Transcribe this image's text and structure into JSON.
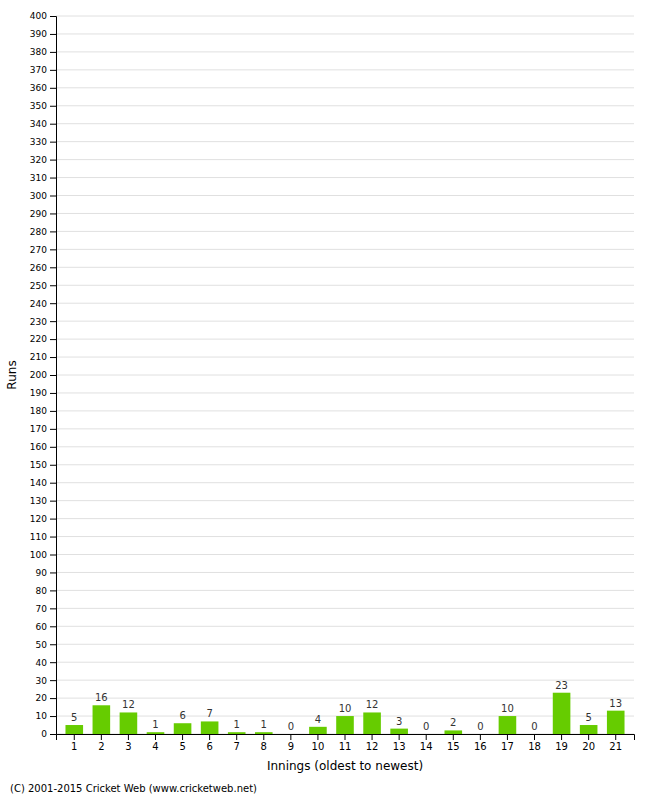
{
  "chart_data": {
    "type": "bar",
    "xlabel": "Innings (oldest to newest)",
    "ylabel": "Runs",
    "categories": [
      1,
      2,
      3,
      4,
      5,
      6,
      7,
      8,
      9,
      10,
      11,
      12,
      13,
      14,
      15,
      16,
      17,
      18,
      19,
      20,
      21
    ],
    "values": [
      5,
      16,
      12,
      1,
      6,
      7,
      1,
      1,
      0,
      4,
      10,
      12,
      3,
      0,
      2,
      0,
      10,
      0,
      23,
      5,
      13
    ],
    "color": "#66cc00",
    "ylim": [
      0,
      400
    ],
    "yticks": [
      0,
      10,
      20,
      30,
      40,
      50,
      60,
      70,
      80,
      90,
      100,
      110,
      120,
      130,
      140,
      150,
      160,
      170,
      180,
      190,
      200,
      210,
      220,
      230,
      240,
      250,
      260,
      270,
      280,
      290,
      300,
      310,
      320,
      330,
      340,
      350,
      360,
      370,
      380,
      390,
      400
    ],
    "grid": true,
    "data_labels": true,
    "annotations": [
      "(C) 2001-2015 Cricket Web (www.cricketweb.net)"
    ]
  }
}
